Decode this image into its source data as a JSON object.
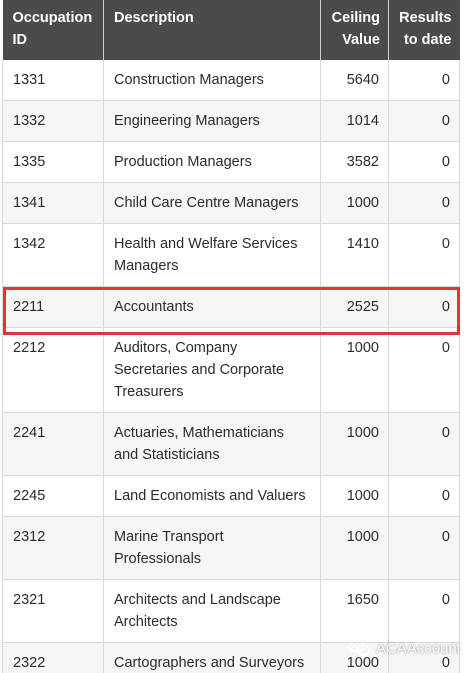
{
  "table": {
    "headers": {
      "id": "Occupation ID",
      "description": "Description",
      "ceiling": "Ceiling Value",
      "results": "Results to date"
    },
    "rows": [
      {
        "id": "1331",
        "description": "Construction Managers",
        "ceiling": "5640",
        "results": "0"
      },
      {
        "id": "1332",
        "description": "Engineering Managers",
        "ceiling": "1014",
        "results": "0"
      },
      {
        "id": "1335",
        "description": "Production Managers",
        "ceiling": "3582",
        "results": "0"
      },
      {
        "id": "1341",
        "description": "Child Care Centre Managers",
        "ceiling": "1000",
        "results": "0"
      },
      {
        "id": "1342",
        "description": "Health and Welfare Services Managers",
        "ceiling": "1410",
        "results": "0"
      },
      {
        "id": "2211",
        "description": "Accountants",
        "ceiling": "2525",
        "results": "0"
      },
      {
        "id": "2212",
        "description": "Auditors, Company Secretaries and Corporate Treasurers",
        "ceiling": "1000",
        "results": "0"
      },
      {
        "id": "2241",
        "description": "Actuaries, Mathematicians and Statisticians",
        "ceiling": "1000",
        "results": "0"
      },
      {
        "id": "2245",
        "description": "Land Economists and Valuers",
        "ceiling": "1000",
        "results": "0"
      },
      {
        "id": "2312",
        "description": "Marine Transport Professionals",
        "ceiling": "1000",
        "results": "0"
      },
      {
        "id": "2321",
        "description": "Architects and Landscape Architects",
        "ceiling": "1650",
        "results": "0"
      },
      {
        "id": "2322",
        "description": "Cartographers and Surveyors",
        "ceiling": "1000",
        "results": "0"
      }
    ]
  },
  "highlight": {
    "row_id": "2211",
    "color": "#e3343b"
  },
  "watermark": {
    "text": "ACAAccount",
    "icon": "wechat-icon"
  },
  "colors": {
    "header_bg": "#4b4b4b",
    "header_text": "#ffffff",
    "stripe": "#f6f6f6"
  }
}
